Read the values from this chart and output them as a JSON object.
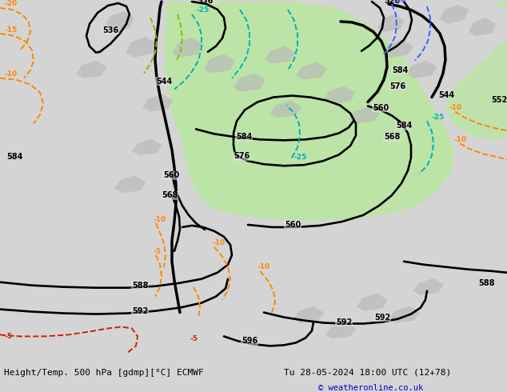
{
  "title_left": "Height/Temp. 500 hPa [gdmp][°C] ECMWF",
  "title_right": "Tu 28-05-2024 18:00 UTC (12+78)",
  "copyright": "© weatheronline.co.uk",
  "bg_color": "#d4d4d4",
  "map_bg": "#e0e0e0",
  "green_fill": "#b8e8a0",
  "gray_land": "#b8b8b8",
  "figsize": [
    6.34,
    4.9
  ],
  "dpi": 100
}
